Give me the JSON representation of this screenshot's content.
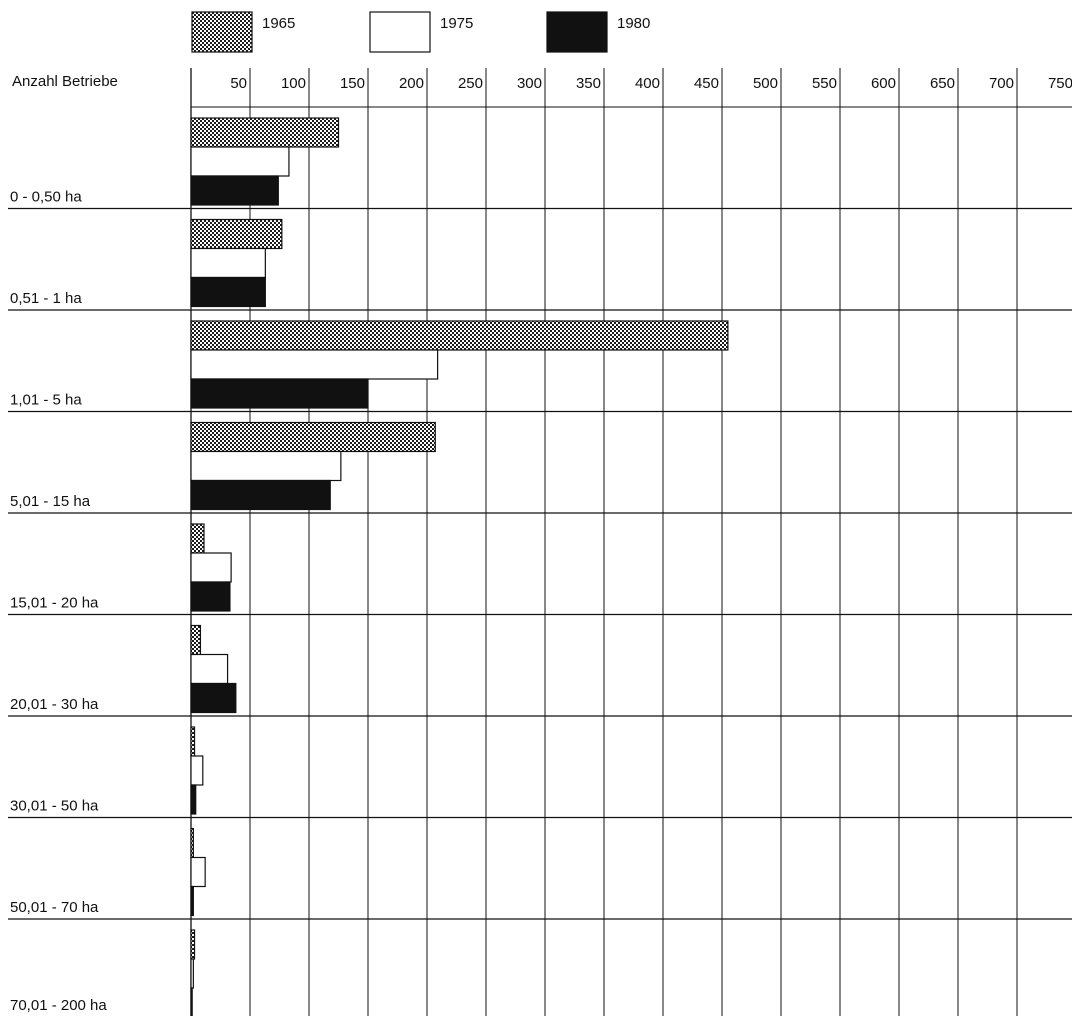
{
  "chart_data": {
    "type": "bar",
    "orientation": "horizontal",
    "ylabel": "Anzahl Betriebe",
    "categories": [
      "0 - 0,50 ha",
      "0,51 - 1 ha",
      "1,01 - 5 ha",
      "5,01 - 15 ha",
      "15,01 - 20 ha",
      "20,01 - 30 ha",
      "30,01 - 50 ha",
      "50,01 - 70 ha",
      "70,01 - 200 ha"
    ],
    "series": [
      {
        "name": "1965",
        "pattern": "stipple",
        "color": "#1a1a1a",
        "values": [
          125,
          77,
          455,
          207,
          11,
          8,
          3,
          2,
          3
        ]
      },
      {
        "name": "1975",
        "pattern": "white",
        "color": "#ffffff",
        "values": [
          83,
          63,
          209,
          127,
          34,
          31,
          10,
          12,
          2
        ]
      },
      {
        "name": "1980",
        "pattern": "solid",
        "color": "#111111",
        "values": [
          74,
          63,
          150,
          118,
          33,
          38,
          4,
          2,
          1
        ]
      }
    ],
    "xticks": [
      50,
      100,
      150,
      200,
      250,
      300,
      350,
      400,
      450,
      500,
      550,
      600,
      650,
      700,
      750
    ],
    "xlim": [
      0,
      750
    ],
    "grid": true,
    "legend_position": "top"
  }
}
